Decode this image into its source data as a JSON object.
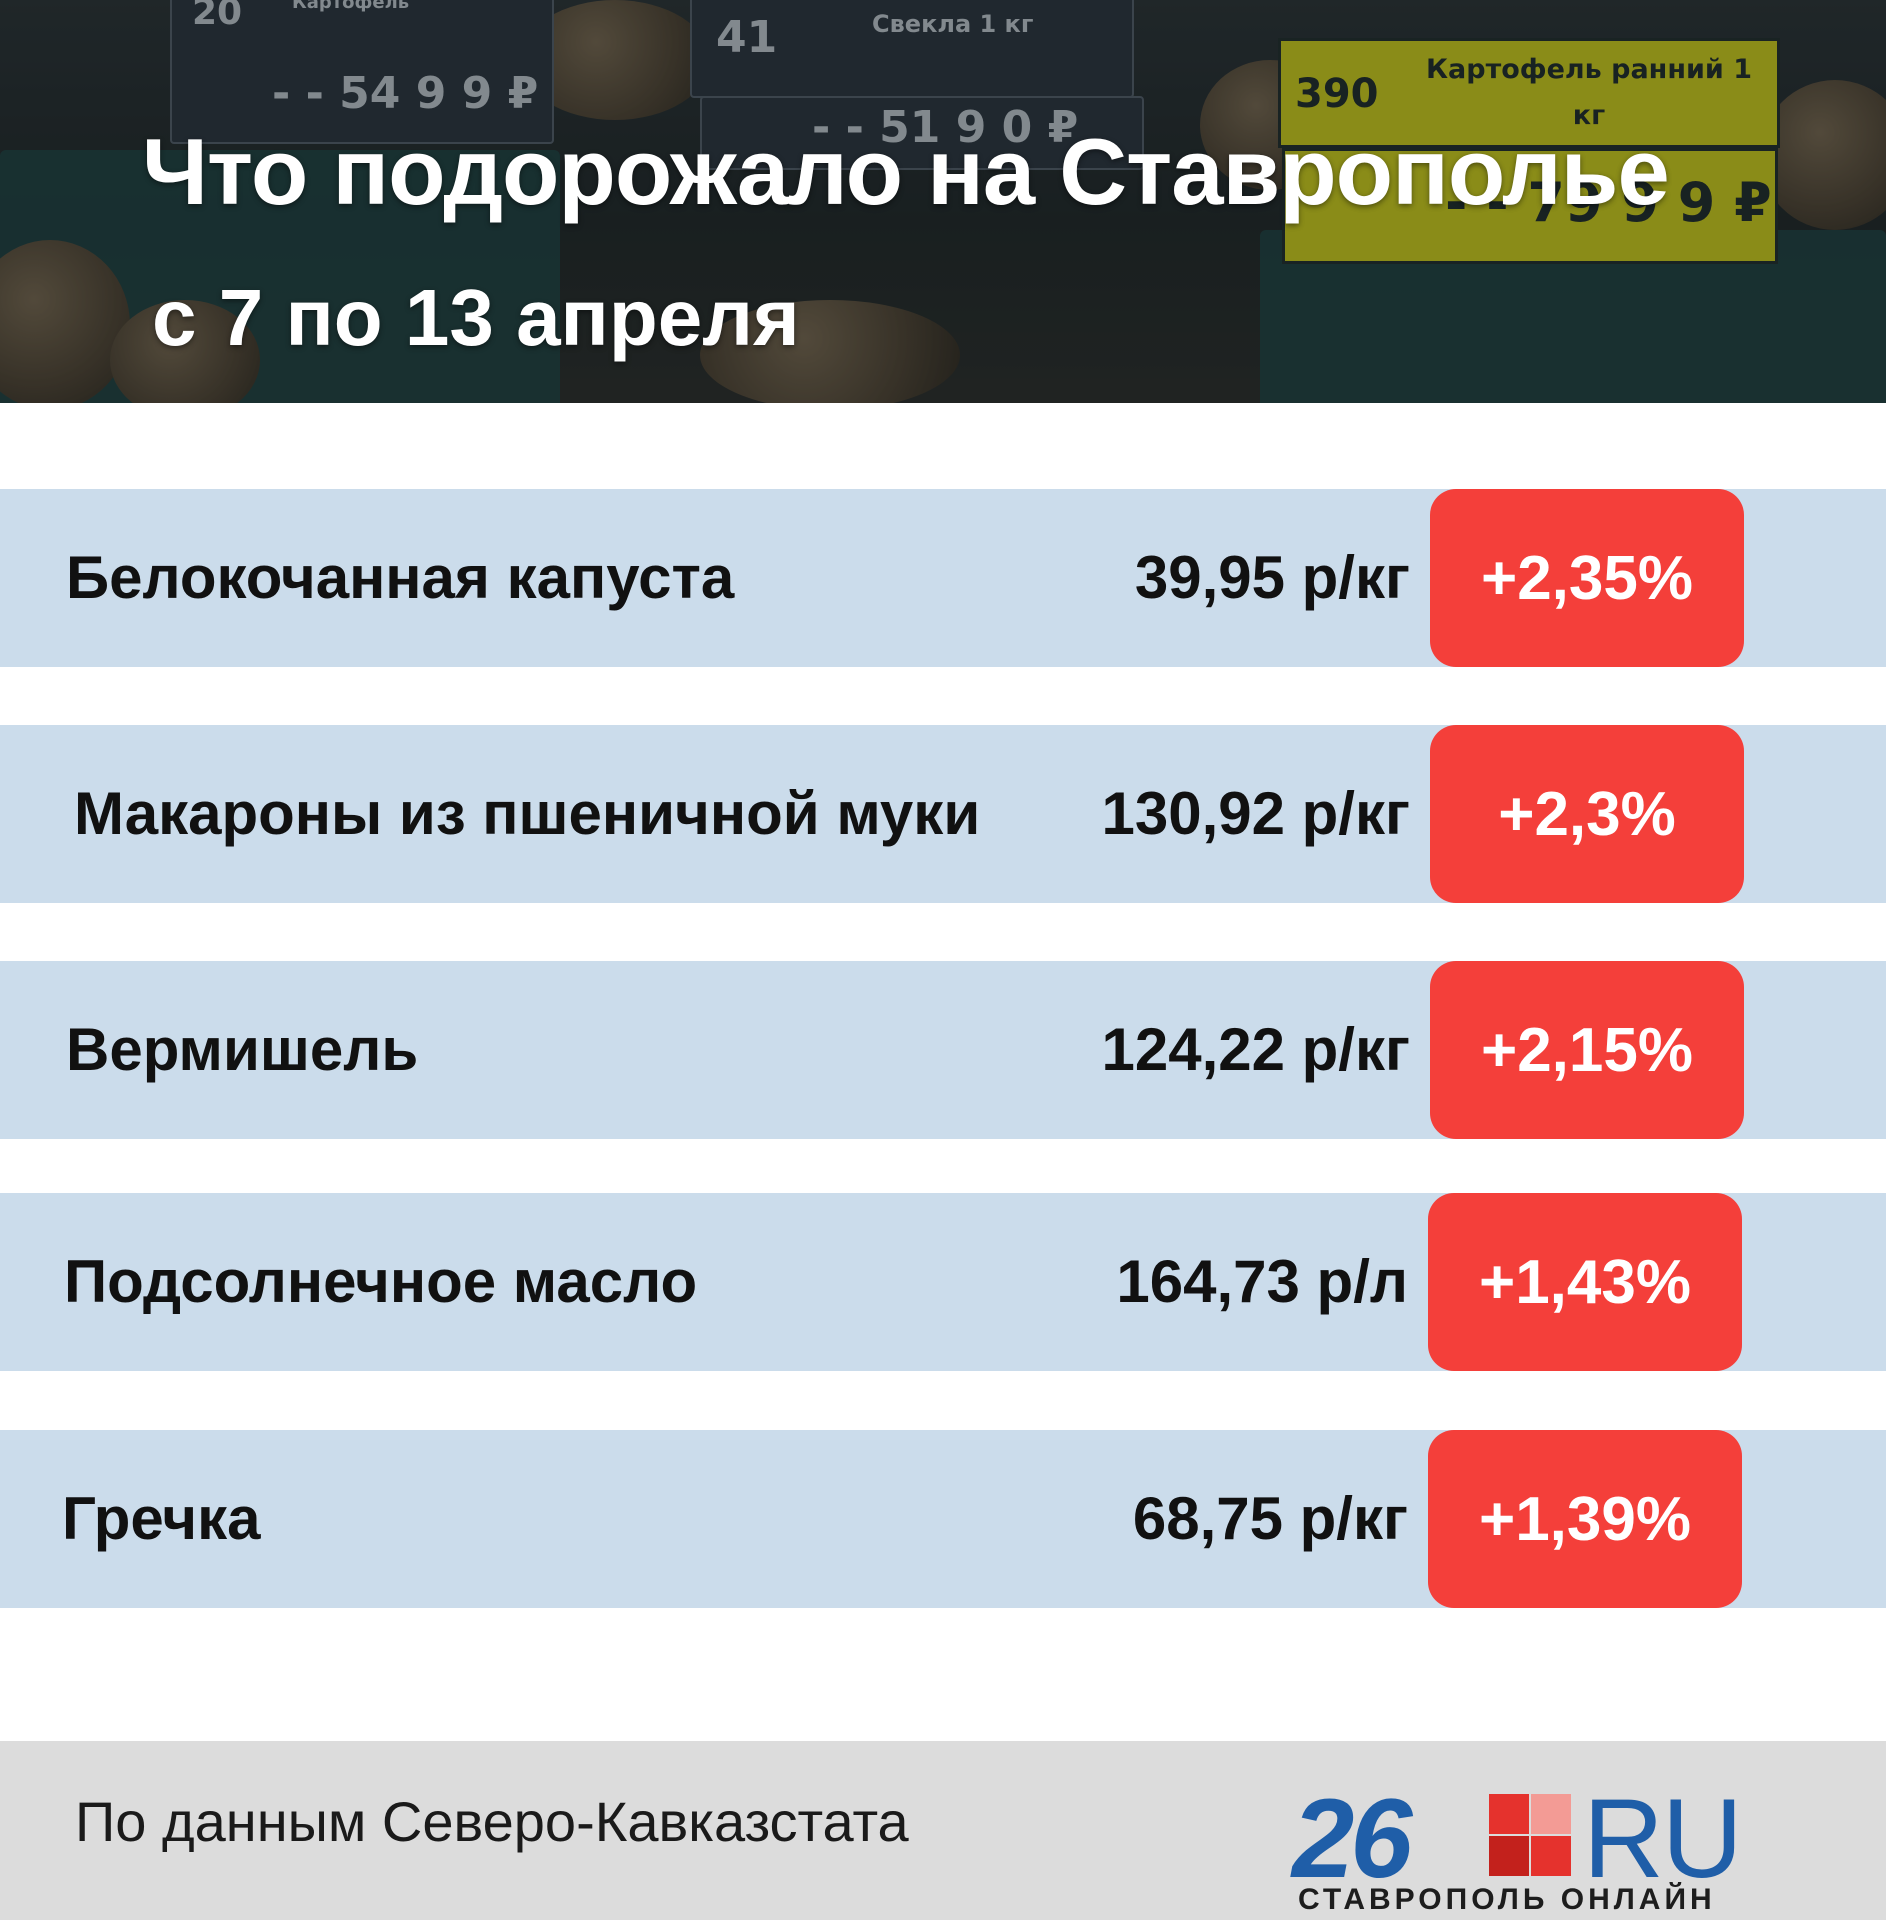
{
  "header": {
    "title": "Что подорожало на Ставрополье",
    "subtitle": "с 7 по 13 апреля",
    "photo_tags": [
      {
        "number": "20",
        "label": "Картофель",
        "price": "- - 54 9 9 ₽"
      },
      {
        "number": "41",
        "label": "Свекла 1 кг",
        "price": "- - 51 9 0 ₽"
      },
      {
        "number": "390",
        "label": "Картофель ранний 1 кг",
        "price": "- - 79 9 9 ₽"
      }
    ]
  },
  "rows": [
    {
      "name": "Белокочанная капуста",
      "price": "39,95 р/кг",
      "change": "+2,35%"
    },
    {
      "name": "Макароны из пшеничной муки",
      "price": "130,92 р/кг",
      "change": "+2,3%"
    },
    {
      "name": "Вермишель",
      "price": "124,22 р/кг",
      "change": "+2,15%"
    },
    {
      "name": "Подсолнечное масло",
      "price": "164,73 р/л",
      "change": "+1,43%"
    },
    {
      "name": "Гречка",
      "price": "68,75 р/кг",
      "change": "+1,39%"
    }
  ],
  "footer": {
    "source": "По данным Северо-Кавказстата",
    "logo": {
      "number": "26",
      "suffix": "RU",
      "tagline": "СТАВРОПОЛЬ ОНЛАЙН"
    }
  },
  "colors": {
    "row_background": "#cbdceb",
    "badge_red": "#f43f3a",
    "logo_blue": "#1f5ea8",
    "footer_gray": "#dcdcdc"
  }
}
